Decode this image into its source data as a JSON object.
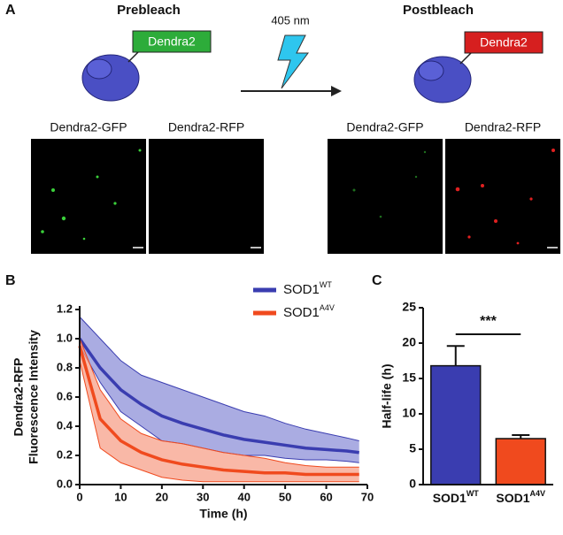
{
  "panel_a": {
    "label": "A",
    "prebleach": "Prebleach",
    "postbleach": "Postbleach",
    "wavelength": "405 nm",
    "protein_label": "Dendra2",
    "channels": [
      "Dendra2-GFP",
      "Dendra2-RFP",
      "Dendra2-GFP",
      "Dendra2-RFP"
    ]
  },
  "chart_data": [
    {
      "type": "line",
      "panel_label": "B",
      "xlabel": "Time (h)",
      "ylabel": [
        "Dendra2-RFP",
        "Fluorescence Intensity"
      ],
      "x": [
        0,
        5,
        10,
        15,
        20,
        25,
        30,
        35,
        40,
        45,
        50,
        55,
        60,
        65,
        68
      ],
      "series": [
        {
          "name": "SOD1",
          "superscript": "WT",
          "color": "#3a3db0",
          "band_color": "#8e90d8",
          "values": [
            1.0,
            0.8,
            0.65,
            0.55,
            0.47,
            0.42,
            0.38,
            0.34,
            0.31,
            0.29,
            0.27,
            0.25,
            0.24,
            0.23,
            0.22
          ],
          "upper": [
            1.15,
            1.0,
            0.85,
            0.75,
            0.7,
            0.65,
            0.6,
            0.55,
            0.5,
            0.47,
            0.42,
            0.38,
            0.35,
            0.32,
            0.3
          ],
          "lower": [
            0.95,
            0.7,
            0.5,
            0.4,
            0.3,
            0.28,
            0.25,
            0.22,
            0.2,
            0.2,
            0.18,
            0.17,
            0.17,
            0.16,
            0.15
          ]
        },
        {
          "name": "SOD1",
          "superscript": "A4V",
          "color": "#f04a1e",
          "band_color": "#f7a08a",
          "values": [
            0.95,
            0.45,
            0.3,
            0.22,
            0.17,
            0.14,
            0.12,
            0.1,
            0.09,
            0.08,
            0.08,
            0.07,
            0.07,
            0.07,
            0.07
          ],
          "upper": [
            1.0,
            0.65,
            0.45,
            0.35,
            0.3,
            0.28,
            0.25,
            0.22,
            0.2,
            0.18,
            0.15,
            0.13,
            0.12,
            0.12,
            0.12
          ],
          "lower": [
            0.85,
            0.25,
            0.15,
            0.1,
            0.05,
            0.03,
            0.02,
            0.02,
            0.02,
            0.02,
            0.02,
            0.02,
            0.02,
            0.02,
            0.02
          ]
        }
      ],
      "xlim": [
        0,
        70
      ],
      "xticks": [
        0,
        10,
        20,
        30,
        40,
        50,
        60,
        70
      ],
      "ylim": [
        0,
        1.2
      ],
      "yticks": [
        {
          "value": 0,
          "label": "0.0"
        },
        0.2,
        0.4,
        0.6,
        0.8,
        {
          "value": 1,
          "label": "1.0"
        },
        1.2
      ]
    },
    {
      "type": "bar",
      "panel_label": "C",
      "ylabel": "Half-life (h)",
      "categories": [
        "SOD1",
        "SOD1"
      ],
      "category_superscripts": [
        "WT",
        "A4V"
      ],
      "values": [
        16.8,
        6.5
      ],
      "errors": [
        2.8,
        0.5
      ],
      "colors": [
        "#3a3db0",
        "#f04a1e"
      ],
      "ylim": [
        0,
        25
      ],
      "yticks": [
        0,
        5,
        10,
        15,
        20,
        25
      ],
      "annotation": "***"
    }
  ]
}
